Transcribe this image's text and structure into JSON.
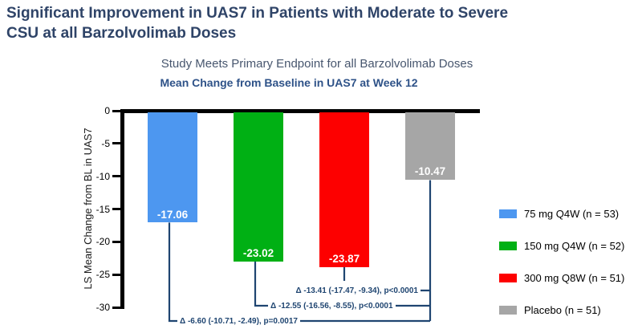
{
  "page": {
    "title_line1": "Significant Improvement in UAS7 in Patients with Moderate to Severe",
    "title_line2": "CSU at all Barzolvolimab Doses",
    "subtitle": "Study Meets Primary Endpoint for all Barzolvolimab Doses"
  },
  "chart_data": {
    "type": "bar",
    "title": "Mean Change from Baseline in UAS7 at Week 12",
    "ylabel": "LS Mean Change from BL in UAS7",
    "ylim": [
      0,
      -30
    ],
    "yticks": [
      0,
      -5,
      -10,
      -15,
      -20,
      -25,
      -30
    ],
    "grid": false,
    "legend_position": "right",
    "categories": [
      "75 mg Q4W (n = 53)",
      "150 mg Q4W (n = 52)",
      "300 mg Q8W (n = 51)",
      "Placebo (n = 51)"
    ],
    "series": [
      {
        "name": "75 mg Q4W (n = 53)",
        "value": -17.06,
        "bar_label": "-17.06",
        "color": "#4D97F0"
      },
      {
        "name": "150 mg Q4W (n = 52)",
        "value": -23.02,
        "bar_label": "-23.02",
        "color": "#00B014"
      },
      {
        "name": "300 mg Q8W (n = 51)",
        "value": -23.87,
        "bar_label": "-23.87",
        "color": "#FD0000"
      },
      {
        "name": "Placebo (n = 51)",
        "value": -10.47,
        "bar_label": "-10.47",
        "color": "#A6A6A6"
      }
    ],
    "comparisons": [
      {
        "label": "Δ -13.41 (-17.47, -9.34), p<0.0001",
        "from": "300 mg Q8W (n = 51)",
        "to": "Placebo (n = 51)"
      },
      {
        "label": "Δ -12.55 (-16.56, -8.55), p<0.0001",
        "from": "150 mg Q4W (n = 52)",
        "to": "Placebo (n = 51)"
      },
      {
        "label": "Δ -6.60 (-10.71, -2.49), p=0.0017",
        "from": "75 mg Q4W (n = 53)",
        "to": "Placebo (n = 51)"
      }
    ],
    "colors": {
      "annotation": "#1F4571",
      "axis": "#000000",
      "title": "#2F4468",
      "subtitle": "#47566E",
      "chart_title": "#2E5288"
    }
  }
}
